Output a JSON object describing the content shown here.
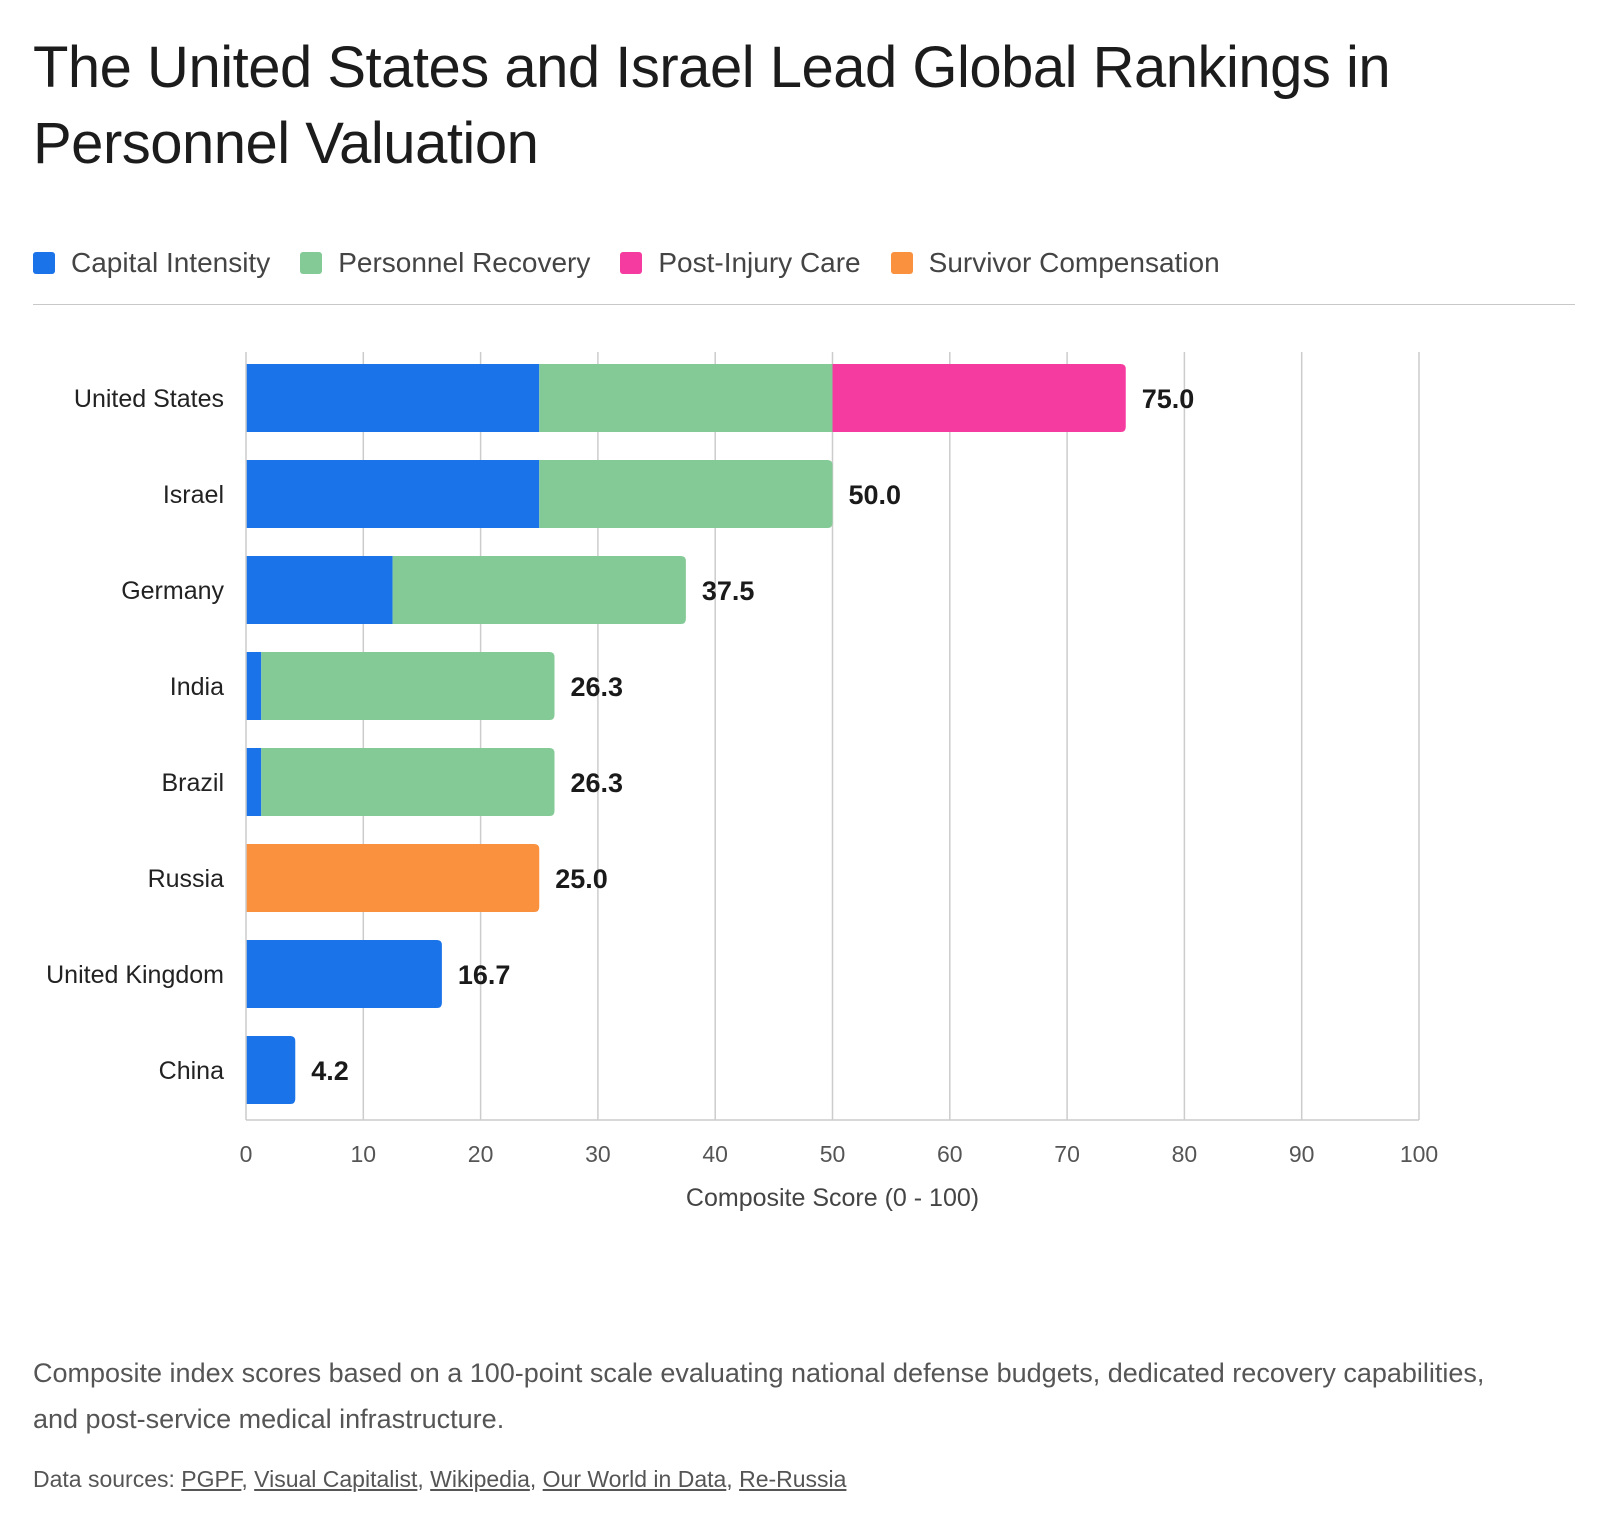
{
  "title": "The United States and Israel Lead Global Rankings in Personnel Valuation",
  "colors": {
    "capital_intensity": "#1a73e8",
    "personnel_recovery": "#84ca97",
    "post_injury_care": "#f63ba0",
    "survivor_compensation": "#fa913f",
    "grid": "#cccccc",
    "axis": "#cccccc"
  },
  "legend": [
    {
      "label": "Capital Intensity",
      "color": "#1a73e8"
    },
    {
      "label": "Personnel Recovery",
      "color": "#84ca97"
    },
    {
      "label": "Post-Injury Care",
      "color": "#f63ba0"
    },
    {
      "label": "Survivor Compensation",
      "color": "#fa913f"
    }
  ],
  "chart_data": {
    "type": "bar",
    "orientation": "horizontal",
    "stacked": true,
    "categories": [
      "United States",
      "Israel",
      "Germany",
      "India",
      "Brazil",
      "Russia",
      "United Kingdom",
      "China"
    ],
    "series": [
      {
        "name": "Capital Intensity",
        "color": "#1a73e8",
        "values": [
          25.0,
          25.0,
          12.5,
          1.3,
          1.3,
          0,
          16.7,
          4.2
        ]
      },
      {
        "name": "Personnel Recovery",
        "color": "#84ca97",
        "values": [
          25.0,
          25.0,
          25.0,
          25.0,
          25.0,
          0,
          0,
          0
        ]
      },
      {
        "name": "Post-Injury Care",
        "color": "#f63ba0",
        "values": [
          25.0,
          0,
          0,
          0,
          0,
          0,
          0,
          0
        ]
      },
      {
        "name": "Survivor Compensation",
        "color": "#fa913f",
        "values": [
          0,
          0,
          0,
          0,
          0,
          25.0,
          0,
          0
        ]
      }
    ],
    "totals": [
      "75.0",
      "50.0",
      "37.5",
      "26.3",
      "26.3",
      "25.0",
      "16.7",
      "4.2"
    ],
    "xlabel": "Composite Score (0 - 100)",
    "xlim": [
      0,
      100
    ],
    "xticks": [
      0,
      10,
      20,
      30,
      40,
      50,
      60,
      70,
      80,
      90,
      100
    ],
    "grid": true,
    "legend_position": "top-left"
  },
  "note": "Composite index scores based on a 100-point scale evaluating national defense budgets, dedicated recovery capabilities, and post-service medical infrastructure.",
  "sources": {
    "prefix": "Data sources: ",
    "links": [
      "PGPF",
      "Visual Capitalist",
      "Wikipedia",
      "Our World in Data",
      "Re-Russia"
    ]
  }
}
